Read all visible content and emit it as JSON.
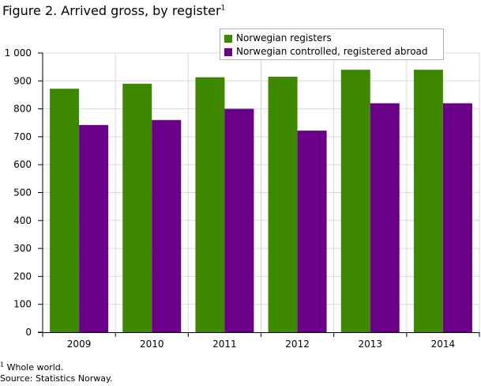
{
  "figure": {
    "title": "Figure 2. Arrived gross, by register",
    "title_sup": "1"
  },
  "chart_data": {
    "type": "bar",
    "categories": [
      "2009",
      "2010",
      "2011",
      "2012",
      "2013",
      "2014"
    ],
    "series": [
      {
        "name": "Norwegian registers",
        "color": "#3e8800",
        "values": [
          872,
          890,
          913,
          915,
          940,
          940
        ]
      },
      {
        "name": "Norwegian controlled, registered abroad",
        "color": "#6b0088",
        "values": [
          742,
          760,
          800,
          722,
          820,
          820
        ]
      }
    ],
    "yticks": [
      "0",
      "100",
      "200",
      "300",
      "400",
      "500",
      "600",
      "700",
      "800",
      "900",
      "1 000"
    ],
    "ylim": [
      0,
      1000
    ],
    "grid": true,
    "legend_position": "top-right"
  },
  "footnotes": {
    "note_sup": "1",
    "note_text": " Whole world.",
    "source": "Source: Statistics Norway."
  }
}
